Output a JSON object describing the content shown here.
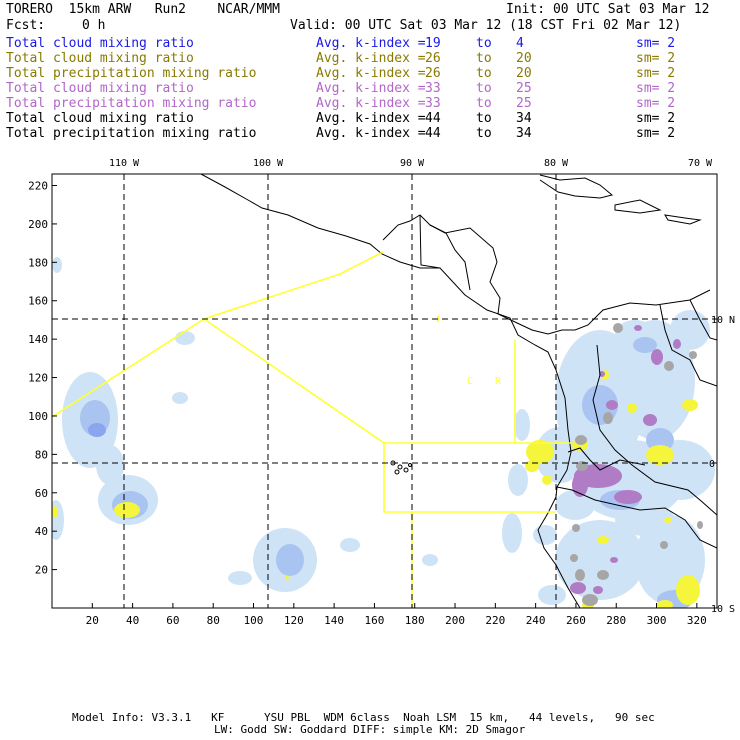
{
  "header": {
    "model": "TORERO  15km ARW   Run2    NCAR/MMM",
    "init": "Init: 00 UTC Sat 03 Mar 12",
    "fcst_label": "Fcst:",
    "fcst_value": "0 h",
    "valid": "Valid: 00 UTC Sat 03 Mar 12 (18 CST Fri 02 Mar 12)"
  },
  "legend": [
    {
      "var": "Total cloud mixing ratio",
      "avg": "Avg. k-index =",
      "lo": "19",
      "to": "to",
      "hi": "4",
      "sm": "sm= 2",
      "color": "#1a1ae6"
    },
    {
      "var": "Total cloud mixing ratio",
      "avg": "Avg. k-index =",
      "lo": "26",
      "to": "to",
      "hi": "20",
      "sm": "sm= 2",
      "color": "#8a7a00"
    },
    {
      "var": "Total precipitation mixing ratio",
      "avg": "Avg. k-index =",
      "lo": "26",
      "to": "to",
      "hi": "20",
      "sm": "sm= 2",
      "color": "#8a7a00"
    },
    {
      "var": "Total cloud mixing ratio",
      "avg": "Avg. k-index =",
      "lo": "33",
      "to": "to",
      "hi": "25",
      "sm": "sm= 2",
      "color": "#b267c8"
    },
    {
      "var": "Total precipitation mixing ratio",
      "avg": "Avg. k-index =",
      "lo": "33",
      "to": "to",
      "hi": "25",
      "sm": "sm= 2",
      "color": "#b267c8"
    },
    {
      "var": "Total cloud mixing ratio",
      "avg": "Avg. k-index =",
      "lo": "44",
      "to": "to",
      "hi": "34",
      "sm": "sm= 2",
      "color": "#000000"
    },
    {
      "var": "Total precipitation mixing ratio",
      "avg": "Avg. k-index =",
      "lo": "44",
      "to": "to",
      "hi": "34",
      "sm": "sm= 2",
      "color": "#000000"
    }
  ],
  "map": {
    "x_ticks": [
      "20",
      "40",
      "60",
      "80",
      "100",
      "120",
      "140",
      "160",
      "180",
      "200",
      "220",
      "240",
      "260",
      "280",
      "300",
      "320"
    ],
    "y_ticks": [
      "20",
      "40",
      "60",
      "80",
      "100",
      "120",
      "140",
      "160",
      "180",
      "200",
      "220"
    ],
    "lon_labels": [
      "110 W",
      "100 W",
      "90 W",
      "80 W",
      "70 W"
    ],
    "lat_labels": [
      "10 N",
      "0",
      "10 S"
    ],
    "letters": [
      "C",
      "R"
    ],
    "colors": {
      "ocean": "#ffffff",
      "light_blue": "#cfe3f7",
      "mid_blue": "#aac4f2",
      "dark_blue": "#8aa6ee",
      "yellow": "#f5f53c",
      "purple": "#b07cc6",
      "gray": "#a6a6a6",
      "boundary": "#ffff33",
      "coast": "#000000"
    }
  },
  "footer": {
    "line1": "Model Info: V3.3.1   KF      YSU PBL  WDM 6class  Noah LSM  15 km,   44 levels,   90 sec",
    "line2": "LW: Godd SW: Goddard DIFF: simple KM: 2D Smagor"
  }
}
